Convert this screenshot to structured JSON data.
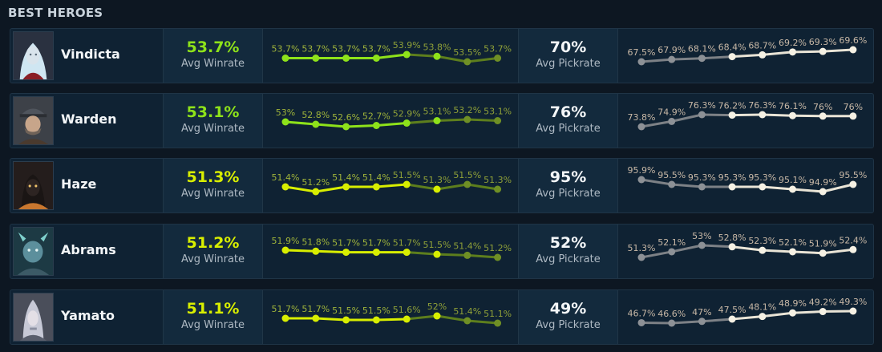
{
  "section_title": "BEST HEROES",
  "labels": {
    "avg_winrate": "Avg Winrate",
    "avg_pickrate": "Avg Pickrate"
  },
  "colors": {
    "win_high": "#8ee21a",
    "win_mid": "#d8ee00",
    "pick_point": "#f5f1e4",
    "pick_dim": "#8d9196",
    "pick_label": "#c8b8a6"
  },
  "heroes": [
    {
      "name": "Vindicta",
      "avatar_icon": "vindicta-portrait-icon",
      "avg_winrate": "53.7%",
      "avg_pickrate": "70%",
      "win_color": "#8ee21a",
      "winrate_series": [
        53.7,
        53.7,
        53.7,
        53.7,
        53.9,
        53.8,
        53.5,
        53.7
      ],
      "winrate_labels": [
        "53.7%",
        "53.7%",
        "53.7%",
        "53.7%",
        "53.9%",
        "53.8%",
        "53.5%",
        "53.7%"
      ],
      "pickrate_series": [
        67.5,
        67.9,
        68.1,
        68.4,
        68.7,
        69.2,
        69.3,
        69.6
      ],
      "pickrate_labels": [
        "67.5%",
        "67.9%",
        "68.1%",
        "68.4%",
        "68.7%",
        "69.2%",
        "69.3%",
        "69.6%"
      ]
    },
    {
      "name": "Warden",
      "avatar_icon": "warden-portrait-icon",
      "avg_winrate": "53.1%",
      "avg_pickrate": "76%",
      "win_color": "#8ee21a",
      "winrate_series": [
        53.0,
        52.8,
        52.6,
        52.7,
        52.9,
        53.1,
        53.2,
        53.1
      ],
      "winrate_labels": [
        "53%",
        "52.8%",
        "52.6%",
        "52.7%",
        "52.9%",
        "53.1%",
        "53.2%",
        "53.1%"
      ],
      "pickrate_series": [
        73.8,
        74.9,
        76.3,
        76.2,
        76.3,
        76.1,
        76.0,
        76.0
      ],
      "pickrate_labels": [
        "73.8%",
        "74.9%",
        "76.3%",
        "76.2%",
        "76.3%",
        "76.1%",
        "76%",
        "76%"
      ]
    },
    {
      "name": "Haze",
      "avatar_icon": "haze-portrait-icon",
      "avg_winrate": "51.3%",
      "avg_pickrate": "95%",
      "win_color": "#d8ee00",
      "winrate_series": [
        51.4,
        51.2,
        51.4,
        51.4,
        51.5,
        51.3,
        51.5,
        51.3
      ],
      "winrate_labels": [
        "51.4%",
        "51.2%",
        "51.4%",
        "51.4%",
        "51.5%",
        "51.3%",
        "51.5%",
        "51.3%"
      ],
      "pickrate_series": [
        95.9,
        95.5,
        95.3,
        95.3,
        95.3,
        95.1,
        94.9,
        95.5
      ],
      "pickrate_labels": [
        "95.9%",
        "95.5%",
        "95.3%",
        "95.3%",
        "95.3%",
        "95.1%",
        "94.9%",
        "95.5%"
      ]
    },
    {
      "name": "Abrams",
      "avatar_icon": "abrams-portrait-icon",
      "avg_winrate": "51.2%",
      "avg_pickrate": "52%",
      "win_color": "#d8ee00",
      "winrate_series": [
        51.9,
        51.8,
        51.7,
        51.7,
        51.7,
        51.5,
        51.4,
        51.2
      ],
      "winrate_labels": [
        "51.9%",
        "51.8%",
        "51.7%",
        "51.7%",
        "51.7%",
        "51.5%",
        "51.4%",
        "51.2%"
      ],
      "pickrate_series": [
        51.3,
        52.1,
        53.0,
        52.8,
        52.3,
        52.1,
        51.9,
        52.4
      ],
      "pickrate_labels": [
        "51.3%",
        "52.1%",
        "53%",
        "52.8%",
        "52.3%",
        "52.1%",
        "51.9%",
        "52.4%"
      ]
    },
    {
      "name": "Yamato",
      "avatar_icon": "yamato-portrait-icon",
      "avg_winrate": "51.1%",
      "avg_pickrate": "49%",
      "win_color": "#d8ee00",
      "winrate_series": [
        51.7,
        51.7,
        51.5,
        51.5,
        51.6,
        52.0,
        51.4,
        51.1
      ],
      "winrate_labels": [
        "51.7%",
        "51.7%",
        "51.5%",
        "51.5%",
        "51.6%",
        "52%",
        "51.4%",
        "51.1%"
      ],
      "pickrate_series": [
        46.7,
        46.6,
        47.0,
        47.5,
        48.1,
        48.9,
        49.2,
        49.3
      ],
      "pickrate_labels": [
        "46.7%",
        "46.6%",
        "47%",
        "47.5%",
        "48.1%",
        "48.9%",
        "49.2%",
        "49.3%"
      ]
    }
  ]
}
